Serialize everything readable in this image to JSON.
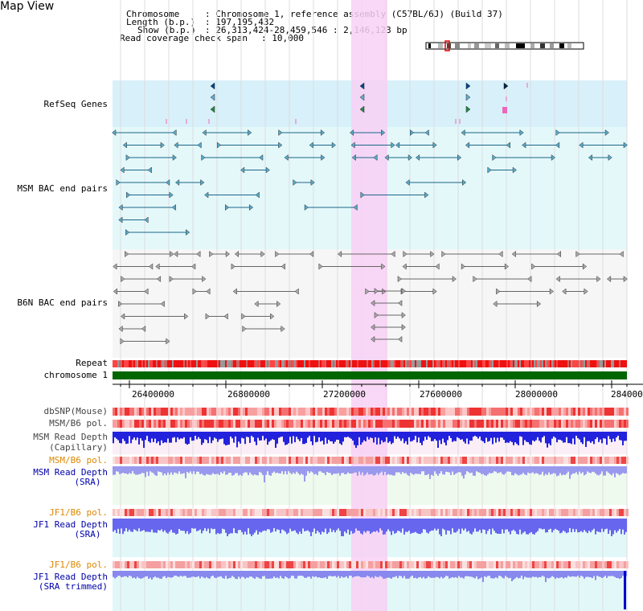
{
  "page": {
    "title": "Map View"
  },
  "info": {
    "chromosome_label": "Chromosome",
    "chromosome_value": ": Chromosome 1, reference assembly (C57BL/6J) (Build 37)",
    "length_label": "Length (b.p.)",
    "length_value": ": 197,195,432",
    "show_label": "Show (b.p.)",
    "show_value": ": 26,313,424-28,459,546 : 2,146,123 bp",
    "coverage_label": "Read coverage check span",
    "coverage_value": ": 10,000"
  },
  "tracks": {
    "refseq": "RefSeq Genes",
    "msm_bac": "MSM BAC end pairs",
    "b6n_bac": "B6N BAC end pairs",
    "repeat": "Repeat",
    "chromosome": "chromosome 1",
    "dbsnp": "dbSNP(Mouse)",
    "msm_b6_pol_1": "MSM/B6 pol.",
    "msm_depth_cap_1": "MSM Read Depth",
    "msm_depth_cap_2": "(Capillary)",
    "msm_b6_pol_2": "MSM/B6 pol.",
    "msm_depth_sra_1": "MSM Read Depth",
    "msm_depth_sra_2": "(SRA)",
    "jf1_b6_pol_1": "JF1/B6 pol.",
    "jf1_depth_sra_1": "JF1 Read Depth",
    "jf1_depth_sra_2": "(SRA)",
    "jf1_b6_pol_2": "JF1/B6 pol.",
    "jf1_depth_trim_1": "JF1 Read Depth",
    "jf1_depth_trim_2": "(SRA trimmed)"
  },
  "axis": {
    "ticks": [
      "26400000",
      "26800000",
      "27200000",
      "27600000",
      "28000000",
      "284000"
    ]
  },
  "colors": {
    "refseq_label": "#0000cc",
    "bac_label": "#006688",
    "b6n_label": "#444444",
    "orange_label": "#dd8800",
    "highlight": "#f8d0f4",
    "refseq_bg": "#d8f0fa",
    "bac_bg": "#e4f8fa",
    "chromosome": "#006600"
  }
}
